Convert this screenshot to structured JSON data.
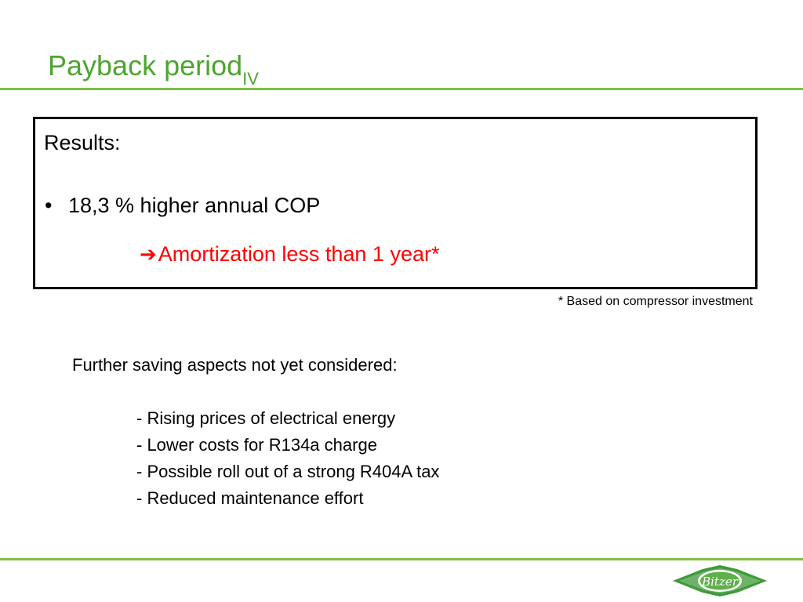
{
  "title": {
    "main": "Payback period",
    "subscript": "IV"
  },
  "results": {
    "heading": "Results:",
    "bullet_symbol": "•",
    "bullet_text": "18,3 % higher annual COP",
    "conclusion_arrow": "➔",
    "conclusion_text": "Amortization less than 1 year*"
  },
  "footnote": "* Based on compressor investment",
  "further": {
    "heading": "Further saving aspects not yet considered:",
    "items": [
      "- Rising prices of electrical energy",
      "- Lower costs for R134a charge",
      "- Possible roll out of a strong R404A tax",
      "- Reduced maintenance effort"
    ]
  },
  "logo": {
    "text": "Bitzer"
  },
  "colors": {
    "title_green": "#4ca52f",
    "rule_green": "#7cc142",
    "highlight_red": "#ff0000"
  }
}
